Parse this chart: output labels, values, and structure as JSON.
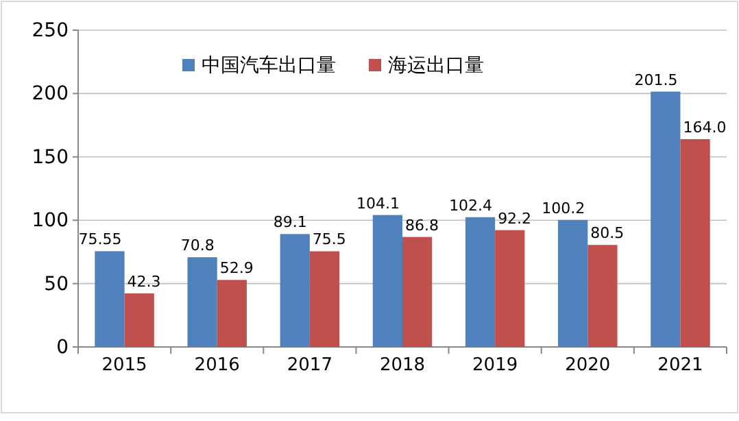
{
  "chart_data": {
    "type": "bar",
    "categories": [
      "2015",
      "2016",
      "2017",
      "2018",
      "2019",
      "2020",
      "2021"
    ],
    "series": [
      {
        "name": "中国汽车出口量",
        "color": "#4f81bd",
        "values": [
          75.55,
          70.8,
          89.1,
          104.1,
          102.4,
          100.2,
          201.5
        ],
        "value_labels": [
          "75.55",
          "70.8",
          "89.1",
          "104.1",
          "102.4",
          "100.2",
          "201.5"
        ]
      },
      {
        "name": "海运出口量",
        "color": "#c0504d",
        "values": [
          42.3,
          52.9,
          75.5,
          86.8,
          92.2,
          80.5,
          164.0
        ],
        "value_labels": [
          "42.3",
          "52.9",
          "75.5",
          "86.8",
          "92.2",
          "80.5",
          "164.0"
        ]
      }
    ],
    "ylim": [
      0,
      250
    ],
    "yticks": [
      0,
      50,
      100,
      150,
      200,
      250
    ],
    "grid": "y",
    "legend": "top left"
  }
}
